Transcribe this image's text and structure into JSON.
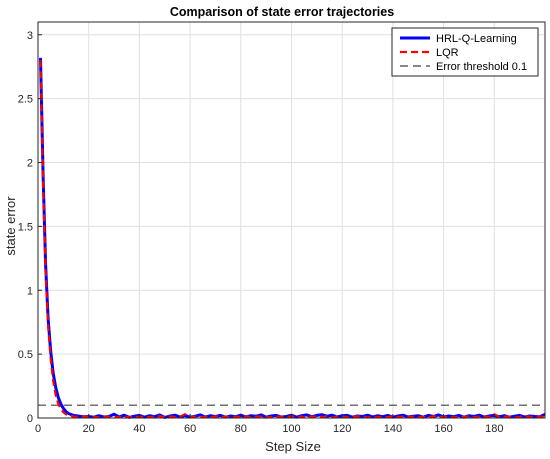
{
  "chart_data": {
    "type": "line",
    "title": "Comparison of state error trajectories",
    "xlabel": "Step Size",
    "ylabel": "state error",
    "xlim": [
      0,
      200
    ],
    "ylim": [
      0,
      3.1
    ],
    "xticks": [
      0,
      20,
      40,
      60,
      80,
      100,
      120,
      140,
      160,
      180
    ],
    "yticks": [
      0,
      0.5,
      1,
      1.5,
      2,
      2.5,
      3
    ],
    "grid": true,
    "legend_position": "top-right",
    "series": [
      {
        "name": "HRL-Q-Learning",
        "color": "#0000ff",
        "style": "solid",
        "x": [
          1,
          2,
          3,
          4,
          5,
          6,
          7,
          8,
          9,
          10,
          11,
          12,
          14,
          16,
          18,
          20,
          22,
          24,
          26,
          28,
          30,
          32,
          34,
          36,
          38,
          40,
          42,
          44,
          46,
          48,
          50,
          52,
          54,
          56,
          58,
          60,
          62,
          64,
          66,
          68,
          70,
          72,
          74,
          76,
          78,
          80,
          82,
          84,
          86,
          88,
          90,
          92,
          94,
          96,
          98,
          100,
          102,
          104,
          106,
          108,
          110,
          112,
          114,
          116,
          118,
          120,
          122,
          124,
          126,
          128,
          130,
          132,
          134,
          136,
          138,
          140,
          142,
          144,
          146,
          148,
          150,
          152,
          154,
          156,
          158,
          160,
          162,
          164,
          166,
          168,
          170,
          172,
          174,
          176,
          178,
          180,
          182,
          184,
          186,
          188,
          190,
          192,
          194,
          196,
          198,
          200
        ],
        "y": [
          2.82,
          1.9,
          1.2,
          0.78,
          0.52,
          0.35,
          0.24,
          0.16,
          0.11,
          0.075,
          0.05,
          0.035,
          0.02,
          0.015,
          0.01,
          0.012,
          0.006,
          0.018,
          0.008,
          0.012,
          0.03,
          0.008,
          0.022,
          0.005,
          0.014,
          0.02,
          0.006,
          0.018,
          0.01,
          0.024,
          0.004,
          0.016,
          0.022,
          0.008,
          0.02,
          0.006,
          0.014,
          0.024,
          0.008,
          0.018,
          0.012,
          0.02,
          0.006,
          0.016,
          0.01,
          0.022,
          0.008,
          0.018,
          0.014,
          0.024,
          0.006,
          0.016,
          0.02,
          0.008,
          0.012,
          0.022,
          0.006,
          0.018,
          0.024,
          0.01,
          0.02,
          0.026,
          0.014,
          0.022,
          0.008,
          0.018,
          0.02,
          0.006,
          0.016,
          0.012,
          0.022,
          0.008,
          0.018,
          0.01,
          0.02,
          0.006,
          0.016,
          0.022,
          0.008,
          0.014,
          0.018,
          0.006,
          0.02,
          0.012,
          0.024,
          0.008,
          0.016,
          0.01,
          0.02,
          0.006,
          0.018,
          0.012,
          0.022,
          0.008,
          0.016,
          0.02,
          0.01,
          0.018,
          0.006,
          0.014,
          0.02,
          0.008,
          0.016,
          0.012,
          0.01,
          0.028
        ]
      },
      {
        "name": "LQR",
        "color": "#ff0000",
        "style": "dashed",
        "x": [
          1,
          2,
          3,
          4,
          5,
          6,
          7,
          8,
          9,
          10,
          11,
          12,
          14,
          16,
          18,
          20,
          22,
          24,
          26,
          28,
          30,
          32,
          34,
          36,
          38,
          40,
          42,
          44,
          46,
          48,
          50,
          52,
          54,
          56,
          58,
          60,
          62,
          64,
          66,
          68,
          70,
          72,
          74,
          76,
          78,
          80,
          82,
          84,
          86,
          88,
          90,
          92,
          94,
          96,
          98,
          100,
          102,
          104,
          106,
          108,
          110,
          112,
          114,
          116,
          118,
          120,
          122,
          124,
          126,
          128,
          130,
          132,
          134,
          136,
          138,
          140,
          142,
          144,
          146,
          148,
          150,
          152,
          154,
          156,
          158,
          160,
          162,
          164,
          166,
          168,
          170,
          172,
          174,
          176,
          178,
          180,
          182,
          184,
          186,
          188,
          190,
          192,
          194,
          196,
          198,
          200
        ],
        "y": [
          2.8,
          1.85,
          1.15,
          0.72,
          0.46,
          0.29,
          0.18,
          0.11,
          0.07,
          0.045,
          0.03,
          0.02,
          0.012,
          0.008,
          0.014,
          0.006,
          0.01,
          0.004,
          0.012,
          0.008,
          0.01,
          0.006,
          0.014,
          0.004,
          0.01,
          0.008,
          0.012,
          0.006,
          0.01,
          0.014,
          0.004,
          0.012,
          0.008,
          0.01,
          0.03,
          0.006,
          0.012,
          0.008,
          0.01,
          0.004,
          0.014,
          0.008,
          0.012,
          0.006,
          0.01,
          0.008,
          0.014,
          0.004,
          0.01,
          0.012,
          0.008,
          0.006,
          0.012,
          0.01,
          0.004,
          0.014,
          0.008,
          0.01,
          0.006,
          0.012,
          0.01,
          0.008,
          0.014,
          0.004,
          0.01,
          0.012,
          0.006,
          0.008,
          0.014,
          0.01,
          0.004,
          0.012,
          0.008,
          0.01,
          0.006,
          0.014,
          0.008,
          0.01,
          0.004,
          0.012,
          0.01,
          0.008,
          0.006,
          0.014,
          0.01,
          0.008,
          0.012,
          0.004,
          0.01,
          0.008,
          0.014,
          0.006,
          0.01,
          0.012,
          0.008,
          0.03,
          0.006,
          0.01,
          0.012,
          0.004,
          0.008,
          0.014,
          0.01,
          0.006,
          0.012,
          0.008
        ]
      },
      {
        "name": "Error threshold 0.1",
        "color": "#404040",
        "style": "dashed",
        "x": [
          0,
          200
        ],
        "y": [
          0.1,
          0.1
        ]
      }
    ]
  }
}
